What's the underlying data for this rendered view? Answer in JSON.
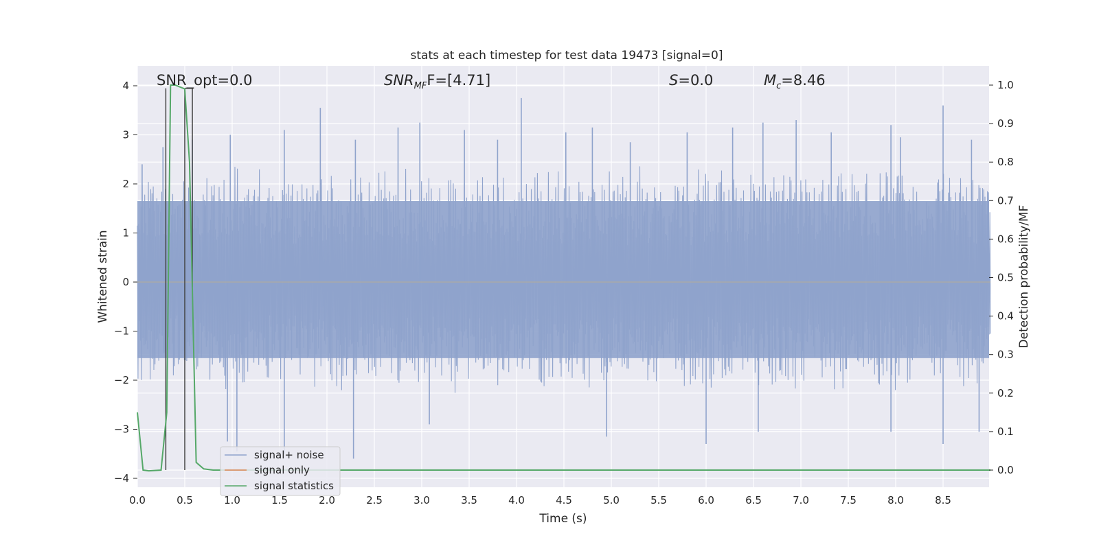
{
  "chart_data": {
    "type": "line",
    "title": "stats at each timestep for test data 19473 [signal=0]",
    "xlabel": "Time (s)",
    "ylabel_left": "Whitened strain",
    "ylabel_right": "Detection probability/MF",
    "xlim": [
      0,
      9.0
    ],
    "ylim_left": [
      -4.4,
      4.4
    ],
    "ylim_right": [
      -0.05,
      1.04
    ],
    "x_ticks": [
      "0.0",
      "0.5",
      "1.0",
      "1.5",
      "2.0",
      "2.5",
      "3.0",
      "3.5",
      "4.0",
      "4.5",
      "5.0",
      "5.5",
      "6.0",
      "6.5",
      "7.0",
      "7.5",
      "8.0",
      "8.5"
    ],
    "y_ticks_left": [
      "−4",
      "−3",
      "−2",
      "−1",
      "0",
      "1",
      "2",
      "3",
      "4"
    ],
    "y_ticks_right": [
      "0.0",
      "0.1",
      "0.2",
      "0.3",
      "0.4",
      "0.5",
      "0.6",
      "0.7",
      "0.8",
      "0.9",
      "1.0"
    ],
    "grid": true,
    "legend_position": "lower-left",
    "annotations": {
      "snr_opt": "SNR_opt=0.0",
      "snr_mf_main": "SNR",
      "snr_mf_sub": "MF",
      "snr_mf_value": "F=[4.71]",
      "s_symbol": "S",
      "s_value": "=0.0",
      "mc_main": "M",
      "mc_sub": "c",
      "mc_value": "=8.46"
    },
    "series": [
      {
        "name": "signal+ noise",
        "axis": "left",
        "color": "#8fa3cc",
        "description_values": {
          "typical_envelope": [
            -1.6,
            1.7
          ],
          "max_peak": 3.75,
          "min_peak": -3.6
        },
        "peaks": [
          {
            "x": 0.05,
            "y": 2.4
          },
          {
            "x": 0.27,
            "y": 2.75
          },
          {
            "x": 0.58,
            "y": 2.9
          },
          {
            "x": 0.98,
            "y": 3.0
          },
          {
            "x": 1.55,
            "y": 3.1
          },
          {
            "x": 1.93,
            "y": 3.55
          },
          {
            "x": 2.3,
            "y": 2.9
          },
          {
            "x": 2.75,
            "y": 3.15
          },
          {
            "x": 2.98,
            "y": 3.25
          },
          {
            "x": 3.45,
            "y": 3.1
          },
          {
            "x": 3.8,
            "y": 2.9
          },
          {
            "x": 4.05,
            "y": 3.75
          },
          {
            "x": 4.52,
            "y": 3.05
          },
          {
            "x": 4.8,
            "y": 3.15
          },
          {
            "x": 5.2,
            "y": 2.85
          },
          {
            "x": 5.8,
            "y": 3.05
          },
          {
            "x": 6.28,
            "y": 3.15
          },
          {
            "x": 6.6,
            "y": 3.25
          },
          {
            "x": 6.95,
            "y": 3.3
          },
          {
            "x": 7.32,
            "y": 3.05
          },
          {
            "x": 7.95,
            "y": 3.2
          },
          {
            "x": 8.05,
            "y": 2.95
          },
          {
            "x": 8.5,
            "y": 3.6
          },
          {
            "x": 8.8,
            "y": 2.9
          },
          {
            "x": 0.95,
            "y": -3.25
          },
          {
            "x": 1.05,
            "y": -3.45
          },
          {
            "x": 1.55,
            "y": -3.5
          },
          {
            "x": 2.28,
            "y": -3.6
          },
          {
            "x": 3.08,
            "y": -2.9
          },
          {
            "x": 4.95,
            "y": -3.15
          },
          {
            "x": 6.0,
            "y": -3.3
          },
          {
            "x": 6.55,
            "y": -3.05
          },
          {
            "x": 7.95,
            "y": -3.05
          },
          {
            "x": 8.5,
            "y": -3.3
          },
          {
            "x": 8.88,
            "y": -3.05
          }
        ]
      },
      {
        "name": "signal only",
        "axis": "left",
        "color": "#dd8452",
        "x": [
          0.0,
          9.0
        ],
        "y": [
          0.0,
          0.0
        ]
      },
      {
        "name": "signal statistics",
        "axis": "right",
        "color": "#55a868",
        "x": [
          0.0,
          0.06,
          0.12,
          0.25,
          0.31,
          0.35,
          0.4,
          0.5,
          0.55,
          0.62,
          0.7,
          0.8,
          9.0
        ],
        "y": [
          0.15,
          0.0,
          -0.002,
          0.0,
          0.15,
          1.0,
          1.0,
          0.99,
          0.8,
          0.02,
          0.003,
          0.0,
          0.0
        ]
      }
    ],
    "vertical_markers": [
      0.3,
      0.5
    ],
    "bracket": {
      "x_from": 0.5,
      "x_to": 0.58,
      "y": 3.95
    }
  }
}
